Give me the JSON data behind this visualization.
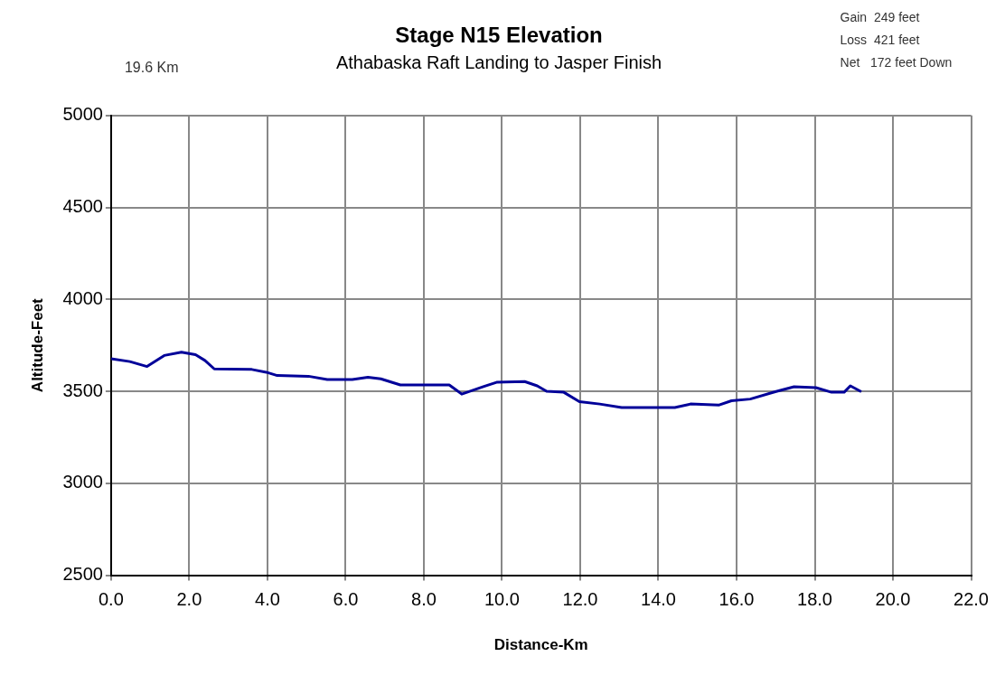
{
  "chart_data": {
    "type": "line",
    "title": "Stage N15 Elevation",
    "subtitle": "Athabaska Raft Landing to Jasper Finish",
    "xlabel": "Distance-Km",
    "ylabel": "Altitude-Feet",
    "annotations": [
      "19.6 Km",
      "Gain  249 feet",
      "Loss  421 feet",
      "Net   172 feet Down"
    ],
    "series": [
      {
        "color": "#000099",
        "x": [
          0,
          0.48,
          0.92,
          1.36,
          1.8,
          2.16,
          2.4,
          2.64,
          3.6,
          3.97,
          4.25,
          5.05,
          5.53,
          6.17,
          6.57,
          6.9,
          7.4,
          8.65,
          8.97,
          9.54,
          9.86,
          10.58,
          10.9,
          11.14,
          11.58,
          11.98,
          12.5,
          13.06,
          14.42,
          14.82,
          15.54,
          15.87,
          16.35,
          16.99,
          17.47,
          18.03,
          18.43,
          18.75,
          18.91,
          19.19
        ],
        "values": [
          3677,
          3662,
          3635,
          3695,
          3713,
          3699,
          3668,
          3622,
          3619,
          3604,
          3586,
          3582,
          3564,
          3564,
          3577,
          3568,
          3535,
          3535,
          3485,
          3527,
          3549,
          3553,
          3530,
          3500,
          3495,
          3444,
          3431,
          3412,
          3412,
          3431,
          3425,
          3449,
          3458,
          3498,
          3525,
          3520,
          3495,
          3495,
          3530,
          3498
        ]
      }
    ],
    "xlim": [
      0,
      22
    ],
    "xticks": [
      {
        "value": 0,
        "label": "0.0"
      },
      {
        "value": 2,
        "label": "2.0"
      },
      {
        "value": 4,
        "label": "4.0"
      },
      {
        "value": 6,
        "label": "6.0"
      },
      {
        "value": 8,
        "label": "8.0"
      },
      {
        "value": 10,
        "label": "10.0"
      },
      {
        "value": 12,
        "label": "12.0"
      },
      {
        "value": 14,
        "label": "14.0"
      },
      {
        "value": 16,
        "label": "16.0"
      },
      {
        "value": 18,
        "label": "18.0"
      },
      {
        "value": 20,
        "label": "20.0"
      },
      {
        "value": 22,
        "label": "22.0"
      }
    ],
    "ylim": [
      2500,
      5000
    ],
    "yticks": [
      2500,
      3000,
      3500,
      4000,
      4500,
      5000
    ],
    "grid": true,
    "legend": false,
    "marker": "none",
    "line_style": "solid"
  }
}
